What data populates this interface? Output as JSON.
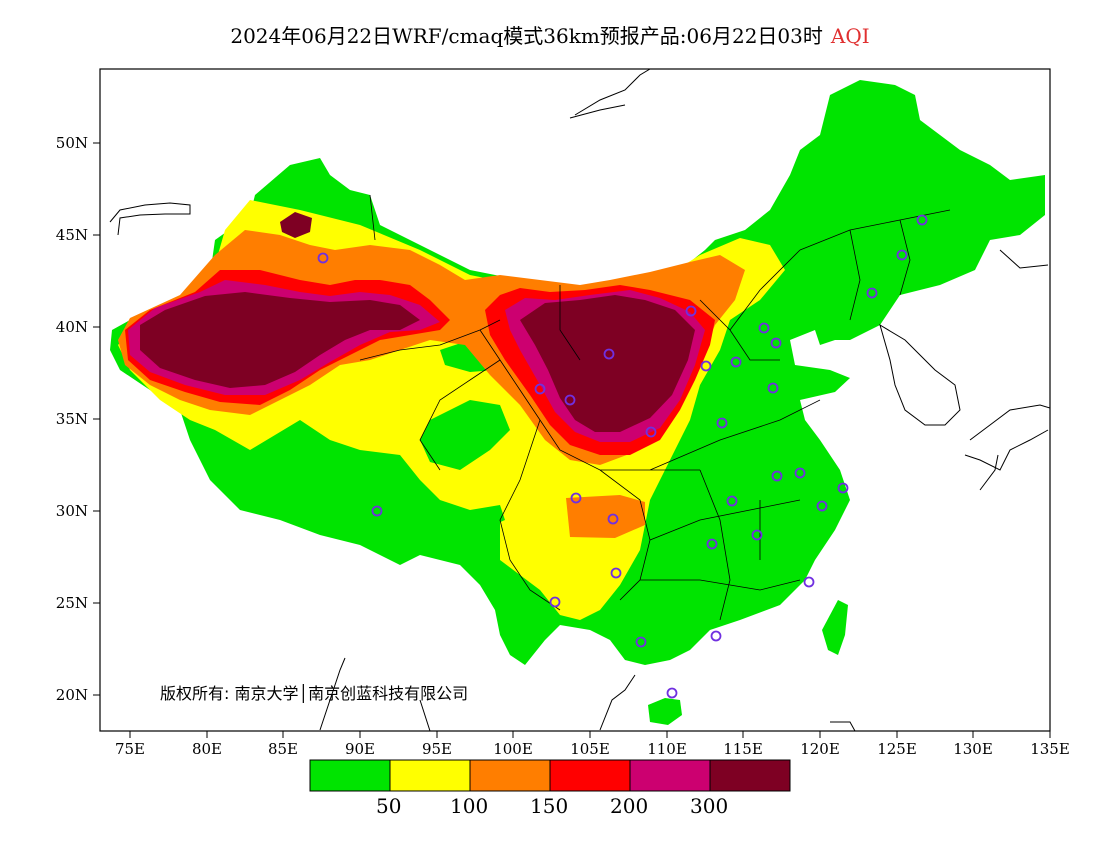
{
  "title": {
    "main": "2024年06月22日WRF/cmaq模式36km预报产品:06月22日03时",
    "variable": "AQI",
    "variable_color": "#e03030"
  },
  "axes": {
    "lat_labels": [
      "50N",
      "45N",
      "40N",
      "35N",
      "30N",
      "25N",
      "20N"
    ],
    "lon_labels": [
      "75E",
      "80E",
      "85E",
      "90E",
      "95E",
      "100E",
      "105E",
      "110E",
      "115E",
      "120E",
      "125E",
      "130E",
      "135E"
    ]
  },
  "legend": {
    "colors": [
      "#00e400",
      "#ffff00",
      "#ff7e00",
      "#ff0000",
      "#cc0070",
      "#7e0023"
    ],
    "labels": [
      "50",
      "100",
      "150",
      "200",
      "300"
    ]
  },
  "copyright": "版权所有: 南京大学│南京创蓝科技有限公司",
  "map_colors": {
    "green": "#00e400",
    "yellow": "#ffff00",
    "orange": "#ff7e00",
    "red": "#ff0000",
    "purple": "#cc0070",
    "maroon": "#7e0023",
    "station_marker": "#7030e0"
  }
}
